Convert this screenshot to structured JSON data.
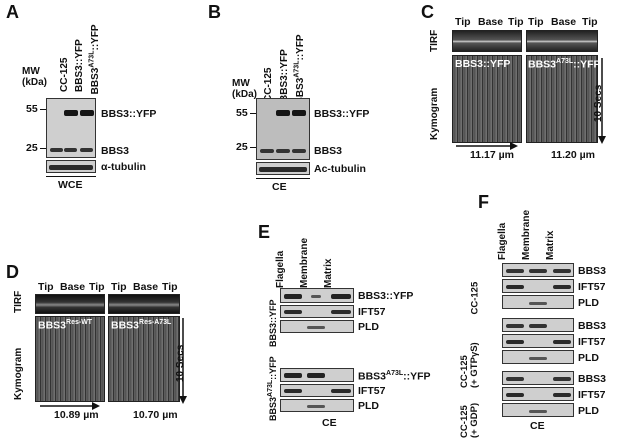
{
  "panels": {
    "A": {
      "letter": "A",
      "mw_label": "MW\n(kDa)",
      "lanes": [
        "CC-125",
        "BBS3::YFP",
        "BBS3A73L::YFP"
      ],
      "markers": [
        "55",
        "25"
      ],
      "band_labels": [
        "BBS3::YFP",
        "BBS3",
        "α-tubulin"
      ],
      "fraction": "WCE"
    },
    "B": {
      "letter": "B",
      "mw_label": "MW\n(kDa)",
      "lanes": [
        "CC-125",
        "BBS3::YFP",
        "BBS3A73L::YFP"
      ],
      "markers": [
        "55",
        "25"
      ],
      "band_labels": [
        "BBS3::YFP",
        "BBS3",
        "Ac-tubulin"
      ],
      "fraction": "CE"
    },
    "C": {
      "letter": "C",
      "axis_labels": [
        "Tip",
        "Base",
        "Tip"
      ],
      "row_labels": [
        "TIRF",
        "Kymogram"
      ],
      "kymo_labels": [
        "BBS3::YFP",
        "BBS3A73L::YFP"
      ],
      "time_label": "10 Secs",
      "scale_labels": [
        "11.17 µm",
        "11.20 µm"
      ]
    },
    "D": {
      "letter": "D",
      "axis_labels": [
        "Tip",
        "Base",
        "Tip"
      ],
      "row_labels": [
        "TIRF",
        "Kymogram"
      ],
      "kymo_labels": [
        "BBS3Res-WT",
        "BBS3Res-A73L"
      ],
      "time_label": "10 Secs",
      "scale_labels": [
        "10.89 µm",
        "10.70 µm"
      ]
    },
    "E": {
      "letter": "E",
      "columns": [
        "Flagella",
        "Membrane",
        "Matrix"
      ],
      "groups": [
        {
          "strain": "BBS3::YFP",
          "bands": [
            "BBS3::YFP",
            "IFT57",
            "PLD"
          ]
        },
        {
          "strain": "BBS3A73L::YFP",
          "bands": [
            "BBS3A73L::YFP",
            "IFT57",
            "PLD"
          ]
        }
      ],
      "fraction": "CE"
    },
    "F": {
      "letter": "F",
      "columns": [
        "Flagella",
        "Membrane",
        "Matrix"
      ],
      "groups": [
        {
          "strain": "CC-125",
          "bands": [
            "BBS3",
            "IFT57",
            "PLD"
          ]
        },
        {
          "strain": "CC-125\n(+ GTPγS)",
          "bands": [
            "BBS3",
            "IFT57",
            "PLD"
          ]
        },
        {
          "strain": "CC-125\n(+ GDP)",
          "bands": [
            "BBS3",
            "IFT57",
            "PLD"
          ]
        }
      ],
      "fraction": "CE"
    }
  }
}
